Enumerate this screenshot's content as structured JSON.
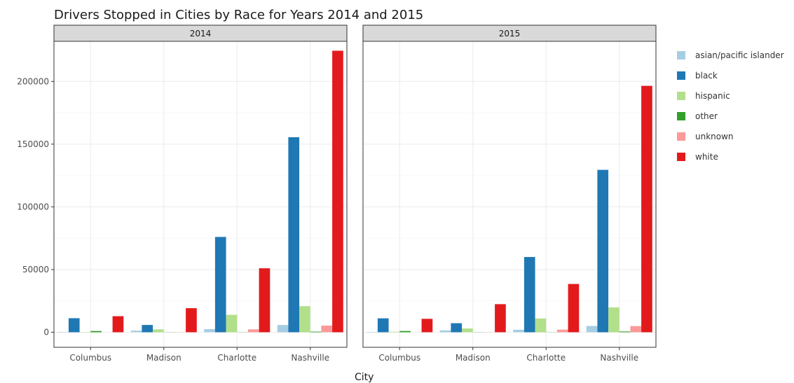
{
  "chart_data": {
    "type": "bar",
    "title": "Drivers Stopped in Cities by Race for Years 2014 and 2015",
    "xlabel": "City",
    "ylabel": "",
    "ylim": [
      -12000,
      232000
    ],
    "yticks": [
      0,
      50000,
      100000,
      150000,
      200000
    ],
    "categories": [
      "Columbus",
      "Madison",
      "Charlotte",
      "Nashville"
    ],
    "legend_position": "right",
    "grid": true,
    "series_meta": [
      {
        "name": "asian/pacific islander",
        "color": "#a6cee3"
      },
      {
        "name": "black",
        "color": "#1f78b4"
      },
      {
        "name": "hispanic",
        "color": "#b2df8a"
      },
      {
        "name": "other",
        "color": "#33a02c"
      },
      {
        "name": "unknown",
        "color": "#fb9a99"
      },
      {
        "name": "white",
        "color": "#e31a1c"
      }
    ],
    "panels": [
      {
        "label": "2014",
        "series": [
          {
            "name": "asian/pacific islander",
            "values": [
              300,
              1300,
              2500,
              5800
            ]
          },
          {
            "name": "black",
            "values": [
              11200,
              5800,
              76000,
              155500
            ]
          },
          {
            "name": "hispanic",
            "values": [
              200,
              2300,
              13900,
              20800
            ]
          },
          {
            "name": "other",
            "values": [
              1000,
              100,
              100,
              500
            ]
          },
          {
            "name": "unknown",
            "values": [
              0,
              100,
              2300,
              5300
            ]
          },
          {
            "name": "white",
            "values": [
              12800,
              19200,
              51000,
              224500
            ]
          }
        ]
      },
      {
        "label": "2015",
        "series": [
          {
            "name": "asian/pacific islander",
            "values": [
              300,
              1500,
              2000,
              5000
            ]
          },
          {
            "name": "black",
            "values": [
              11100,
              7200,
              60000,
              129500
            ]
          },
          {
            "name": "hispanic",
            "values": [
              400,
              3000,
              11000,
              19800
            ]
          },
          {
            "name": "other",
            "values": [
              1000,
              100,
              100,
              600
            ]
          },
          {
            "name": "unknown",
            "values": [
              0,
              100,
              2100,
              4900
            ]
          },
          {
            "name": "white",
            "values": [
              10700,
              22400,
              38500,
              196500
            ]
          }
        ]
      }
    ]
  }
}
